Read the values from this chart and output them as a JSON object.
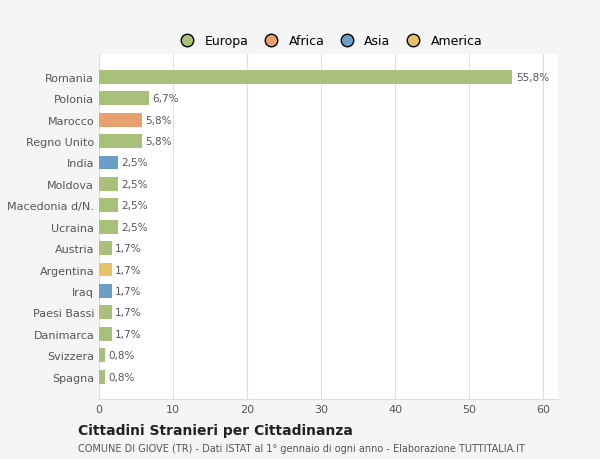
{
  "categories": [
    "Spagna",
    "Svizzera",
    "Danimarca",
    "Paesi Bassi",
    "Iraq",
    "Argentina",
    "Austria",
    "Ucraina",
    "Macedonia d/N.",
    "Moldova",
    "India",
    "Regno Unito",
    "Marocco",
    "Polonia",
    "Romania"
  ],
  "values": [
    0.8,
    0.8,
    1.7,
    1.7,
    1.7,
    1.7,
    1.7,
    2.5,
    2.5,
    2.5,
    2.5,
    5.8,
    5.8,
    6.7,
    55.8
  ],
  "colors": [
    "#a8c07a",
    "#a8c07a",
    "#a8c07a",
    "#a8c07a",
    "#6a9ec7",
    "#e8c06a",
    "#a8c07a",
    "#a8c07a",
    "#a8c07a",
    "#a8c07a",
    "#6a9ec7",
    "#a8c07a",
    "#e8a070",
    "#a8c07a",
    "#a8c07a"
  ],
  "labels": [
    "0,8%",
    "0,8%",
    "1,7%",
    "1,7%",
    "1,7%",
    "1,7%",
    "1,7%",
    "2,5%",
    "2,5%",
    "2,5%",
    "2,5%",
    "5,8%",
    "5,8%",
    "6,7%",
    "55,8%"
  ],
  "legend_labels": [
    "Europa",
    "Africa",
    "Asia",
    "America"
  ],
  "legend_colors": [
    "#a8c07a",
    "#e8a070",
    "#6a9ec7",
    "#e8c06a"
  ],
  "xlim": [
    0,
    62
  ],
  "xticks": [
    0,
    10,
    20,
    30,
    40,
    50,
    60
  ],
  "title": "Cittadini Stranieri per Cittadinanza",
  "subtitle": "COMUNE DI GIOVE (TR) - Dati ISTAT al 1° gennaio di ogni anno - Elaborazione TUTTITALIA.IT",
  "bg_color": "#f5f5f5",
  "bar_bg_color": "#ffffff",
  "grid_color": "#dddddd",
  "label_color": "#555555",
  "title_color": "#222222"
}
